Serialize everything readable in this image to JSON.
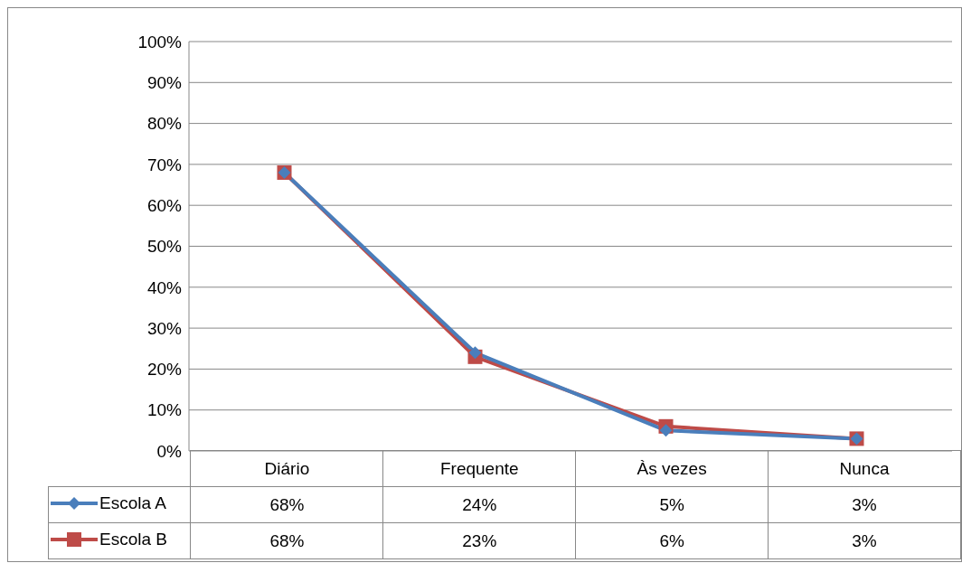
{
  "chart_data": {
    "type": "line",
    "categories": [
      "Diário",
      "Frequente",
      "Às vezes",
      "Nunca"
    ],
    "series": [
      {
        "name": "Escola A",
        "color": "#4a7ebb",
        "marker": "diamond",
        "values": [
          68,
          24,
          5,
          3
        ],
        "value_labels": [
          "68%",
          "24%",
          "5%",
          "3%"
        ]
      },
      {
        "name": "Escola B",
        "color": "#be4b48",
        "marker": "square",
        "values": [
          68,
          23,
          6,
          3
        ],
        "value_labels": [
          "68%",
          "23%",
          "6%",
          "3%"
        ]
      }
    ],
    "ylim": [
      0,
      100
    ],
    "yticks": [
      {
        "value": 0,
        "label": "0%"
      },
      {
        "value": 10,
        "label": "10%"
      },
      {
        "value": 20,
        "label": "20%"
      },
      {
        "value": 30,
        "label": "30%"
      },
      {
        "value": 40,
        "label": "40%"
      },
      {
        "value": 50,
        "label": "50%"
      },
      {
        "value": 60,
        "label": "60%"
      },
      {
        "value": 70,
        "label": "70%"
      },
      {
        "value": 80,
        "label": "80%"
      },
      {
        "value": 90,
        "label": "90%"
      },
      {
        "value": 100,
        "label": "100%"
      }
    ],
    "grid": "y",
    "legend": "bottom"
  }
}
